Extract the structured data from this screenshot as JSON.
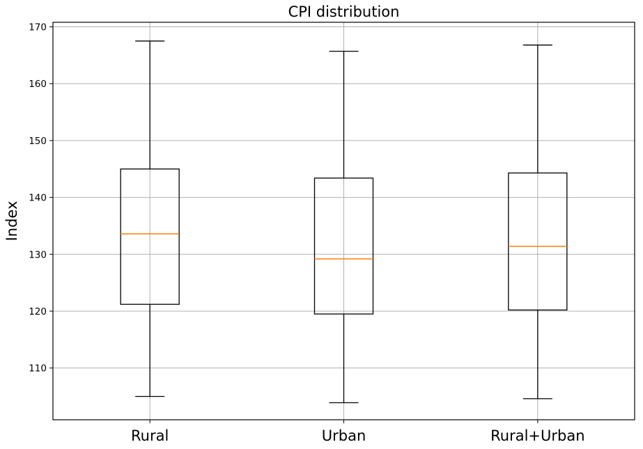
{
  "chart_data": {
    "type": "box",
    "title": "CPI distribution",
    "xlabel": "",
    "ylabel": "Index",
    "categories": [
      "Rural",
      "Urban",
      "Rural+Urban"
    ],
    "ylim": [
      100.9,
      170.8
    ],
    "yticks": [
      110,
      120,
      130,
      140,
      150,
      160,
      170
    ],
    "boxes": [
      {
        "label": "Rural",
        "whisker_low": 105.0,
        "q1": 121.2,
        "median": 133.6,
        "q3": 145.0,
        "whisker_high": 167.5
      },
      {
        "label": "Urban",
        "whisker_low": 103.9,
        "q1": 119.5,
        "median": 129.2,
        "q3": 143.4,
        "whisker_high": 165.7
      },
      {
        "label": "Rural+Urban",
        "whisker_low": 104.6,
        "q1": 120.2,
        "median": 131.4,
        "q3": 144.3,
        "whisker_high": 166.8
      }
    ],
    "grid": true,
    "colors": {
      "box": "#000000",
      "median": "#ff7f0e",
      "grid": "#b0b0b0",
      "background": "#ffffff"
    }
  }
}
